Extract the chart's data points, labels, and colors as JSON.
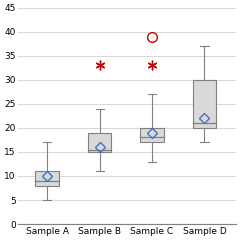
{
  "categories": [
    "Sample A",
    "Sample B",
    "Sample C",
    "Sample D"
  ],
  "boxes": [
    {
      "q1": 8,
      "median": 9,
      "q3": 11,
      "mean": 10,
      "whislo": 5,
      "whishi": 17,
      "fliers_star": [],
      "fliers_circle": []
    },
    {
      "q1": 15,
      "median": 15.5,
      "q3": 19,
      "mean": 16,
      "whislo": 11,
      "whishi": 24,
      "fliers_star": [
        33
      ],
      "fliers_circle": []
    },
    {
      "q1": 17,
      "median": 18,
      "q3": 20,
      "mean": 19,
      "whislo": 13,
      "whishi": 27,
      "fliers_star": [
        33
      ],
      "fliers_circle": [
        39
      ]
    },
    {
      "q1": 20,
      "median": 21,
      "q3": 30,
      "mean": 22,
      "whislo": 17,
      "whishi": 37,
      "fliers_star": [],
      "fliers_circle": []
    }
  ],
  "ylim": [
    0,
    45
  ],
  "yticks": [
    0,
    5,
    10,
    15,
    20,
    25,
    30,
    35,
    40,
    45
  ],
  "box_facecolor": "#d9d9d9",
  "box_edgecolor": "#808080",
  "median_color": "#808080",
  "whisker_color": "#808080",
  "cap_color": "#808080",
  "mean_marker_color": "#4472c4",
  "mean_marker": "D",
  "outlier_star_color": "#cc0000",
  "outlier_circle_color": "#cc0000",
  "grid_color": "#d9d9d9",
  "background_color": "#ffffff",
  "figsize": [
    2.4,
    2.4
  ],
  "dpi": 100
}
